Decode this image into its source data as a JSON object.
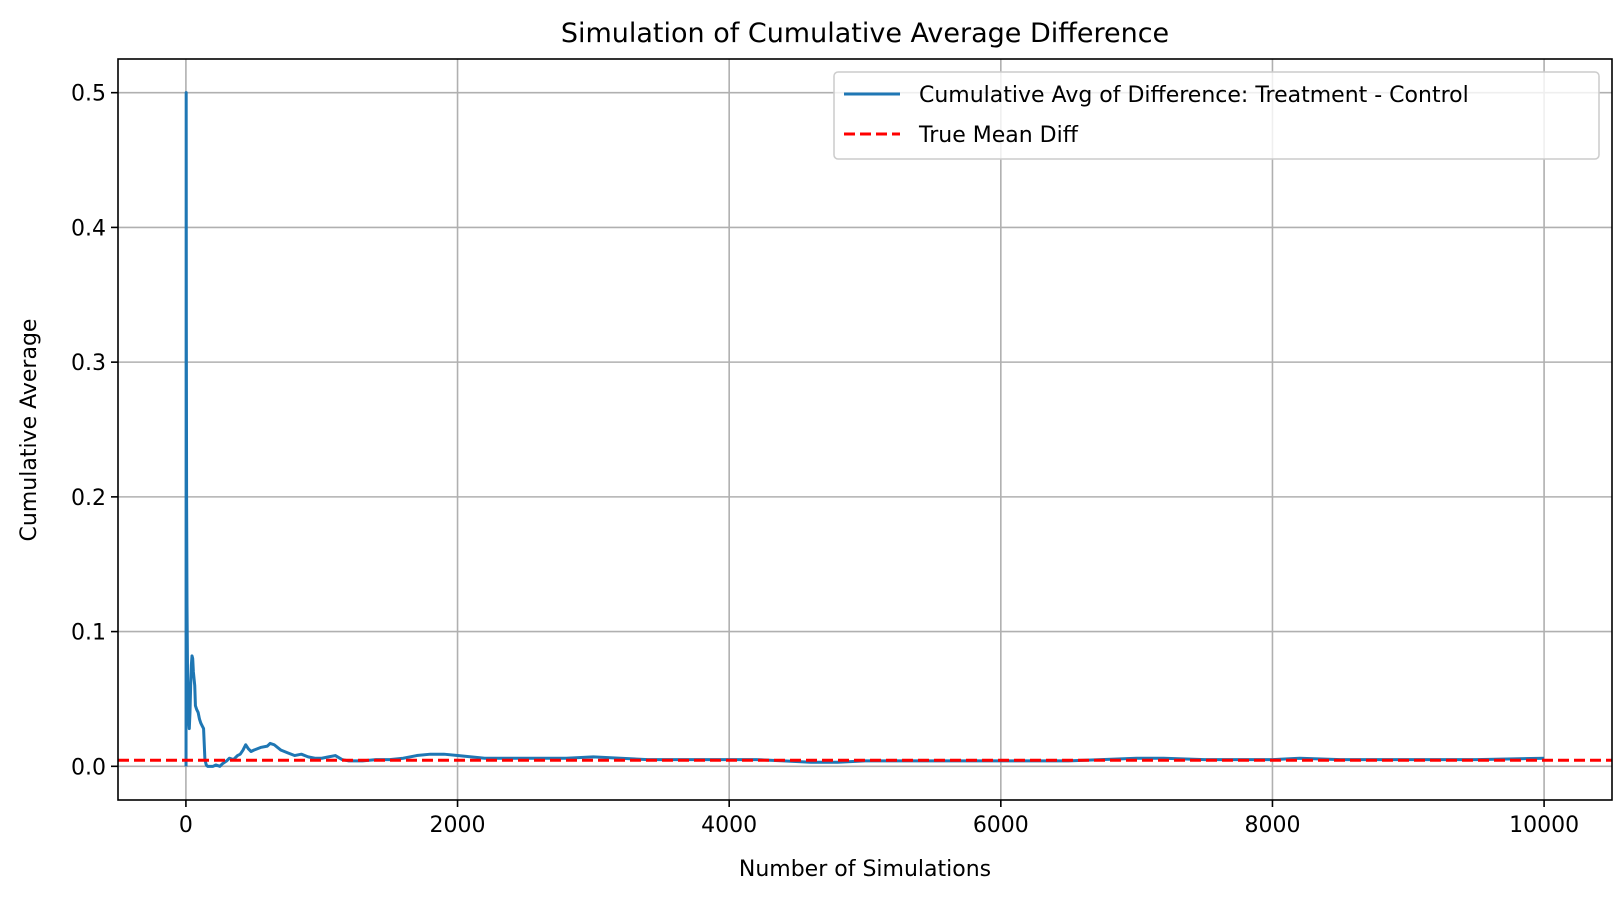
{
  "chart_data": {
    "type": "line",
    "title": "Simulation of Cumulative Average Difference",
    "xlabel": "Number of Simulations",
    "ylabel": "Cumulative Average",
    "xlim": [
      -500,
      10500
    ],
    "ylim": [
      -0.025,
      0.525
    ],
    "xticks": [
      0,
      2000,
      4000,
      6000,
      8000,
      10000
    ],
    "xtick_labels": [
      "0",
      "2000",
      "4000",
      "6000",
      "8000",
      "10000"
    ],
    "yticks": [
      0.0,
      0.1,
      0.2,
      0.3,
      0.4,
      0.5
    ],
    "ytick_labels": [
      "0.0",
      "0.1",
      "0.2",
      "0.3",
      "0.4",
      "0.5"
    ],
    "grid": true,
    "legend_position": "top-right",
    "series": [
      {
        "name": "Cumulative Avg of Difference: Treatment - Control",
        "style": "solid",
        "color": "#1f77b4",
        "x": [
          1,
          2,
          3,
          5,
          8,
          12,
          16,
          20,
          25,
          30,
          35,
          40,
          45,
          50,
          55,
          60,
          65,
          70,
          80,
          90,
          100,
          110,
          120,
          130,
          140,
          150,
          160,
          180,
          200,
          220,
          250,
          270,
          300,
          320,
          350,
          380,
          400,
          420,
          440,
          460,
          480,
          500,
          550,
          600,
          620,
          650,
          700,
          750,
          800,
          850,
          900,
          950,
          1000,
          1050,
          1100,
          1150,
          1200,
          1300,
          1400,
          1500,
          1600,
          1700,
          1800,
          1900,
          2000,
          2100,
          2200,
          2400,
          2600,
          2800,
          3000,
          3200,
          3400,
          3600,
          3800,
          4000,
          4200,
          4400,
          4600,
          4800,
          5000,
          5200,
          5500,
          6000,
          6500,
          7000,
          7200,
          7500,
          8000,
          8200,
          8500,
          9000,
          9500,
          10000
        ],
        "y": [
          0.0,
          0.5,
          0.33,
          0.2,
          0.12,
          0.07,
          0.05,
          0.035,
          0.028,
          0.04,
          0.06,
          0.075,
          0.082,
          0.08,
          0.07,
          0.065,
          0.06,
          0.045,
          0.042,
          0.04,
          0.035,
          0.032,
          0.03,
          0.028,
          0.005,
          0.001,
          0.0,
          0.0,
          0.0,
          0.001,
          0.0,
          0.002,
          0.004,
          0.006,
          0.005,
          0.008,
          0.009,
          0.012,
          0.016,
          0.013,
          0.011,
          0.012,
          0.014,
          0.015,
          0.017,
          0.016,
          0.012,
          0.01,
          0.008,
          0.009,
          0.007,
          0.006,
          0.006,
          0.007,
          0.008,
          0.005,
          0.004,
          0.004,
          0.005,
          0.005,
          0.006,
          0.008,
          0.009,
          0.009,
          0.008,
          0.007,
          0.006,
          0.006,
          0.006,
          0.006,
          0.007,
          0.006,
          0.005,
          0.005,
          0.005,
          0.005,
          0.005,
          0.004,
          0.003,
          0.003,
          0.004,
          0.004,
          0.004,
          0.004,
          0.004,
          0.006,
          0.006,
          0.005,
          0.005,
          0.006,
          0.005,
          0.005,
          0.005,
          0.006
        ]
      },
      {
        "name": "True Mean Diff",
        "style": "dashed",
        "color": "#ff0000",
        "type": "hline",
        "value": 0.0045
      }
    ]
  }
}
